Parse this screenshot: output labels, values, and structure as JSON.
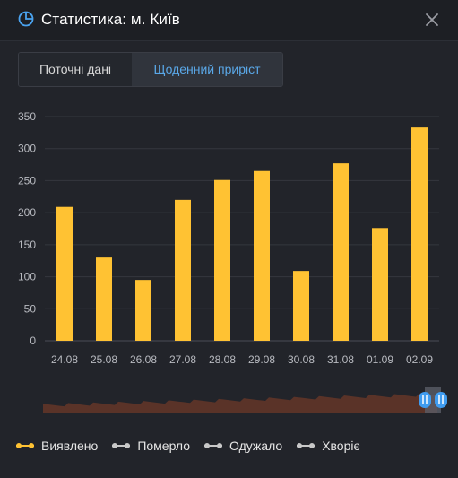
{
  "window": {
    "title": "Статистика: м. Київ",
    "icon": "pie-chart-icon",
    "close_icon": "close-icon"
  },
  "tabs": [
    {
      "label": "Поточні дані",
      "active": false
    },
    {
      "label": "Щоденний приріст",
      "active": true
    }
  ],
  "colors": {
    "accent": "#5aa8e8",
    "bar": "#ffc233",
    "background": "#22242a",
    "navigator_fill": "#5a3328",
    "navigator_handle": "#3f9cf0",
    "legend_inactive": "#c8c8c8"
  },
  "chart_data": {
    "type": "bar",
    "categories": [
      "24.08",
      "25.08",
      "26.08",
      "27.08",
      "28.08",
      "29.08",
      "30.08",
      "31.08",
      "01.09",
      "02.09"
    ],
    "series": [
      {
        "name": "Виявлено",
        "values": [
          209,
          130,
          95,
          220,
          251,
          265,
          109,
          277,
          176,
          333
        ]
      }
    ],
    "y_ticks": [
      0,
      50,
      100,
      150,
      200,
      250,
      300,
      350
    ],
    "ylim": [
      0,
      350
    ],
    "grid": true,
    "legend_position": "bottom-left",
    "navigator": true
  },
  "legend": [
    {
      "label": "Виявлено",
      "color": "#ffc233",
      "active": true
    },
    {
      "label": "Померло",
      "color": "#c8c8c8",
      "active": false
    },
    {
      "label": "Одужало",
      "color": "#c8c8c8",
      "active": false
    },
    {
      "label": "Хворіє",
      "color": "#c8c8c8",
      "active": false
    }
  ]
}
